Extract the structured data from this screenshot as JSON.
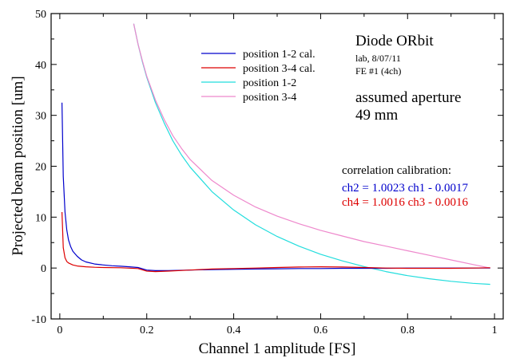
{
  "chart_data": {
    "type": "line",
    "xlabel": "Channel 1 amplitude  [FS]",
    "ylabel": "Projected beam position  [um]",
    "xlim": [
      -0.02,
      1.02
    ],
    "ylim": [
      -10,
      50
    ],
    "xticks": [
      0,
      0.2,
      0.4,
      0.6,
      0.8,
      1
    ],
    "xtick_labels": [
      "0",
      "0.2",
      "0.4",
      "0.6",
      "0.8",
      "1"
    ],
    "yticks": [
      -10,
      0,
      10,
      20,
      30,
      40,
      50
    ],
    "ytick_labels": [
      "-10",
      "0",
      "10",
      "20",
      "30",
      "40",
      "50"
    ],
    "grid": false,
    "legend_position": "top-center",
    "series": [
      {
        "name": "position 1-2 cal.",
        "color": "#0000cc",
        "x": [
          0.005,
          0.008,
          0.012,
          0.016,
          0.02,
          0.025,
          0.03,
          0.04,
          0.05,
          0.06,
          0.08,
          0.1,
          0.12,
          0.14,
          0.16,
          0.18,
          0.2,
          0.22,
          0.25,
          0.3,
          0.35,
          0.4,
          0.45,
          0.5,
          0.55,
          0.6,
          0.65,
          0.7,
          0.75,
          0.8,
          0.85,
          0.9,
          0.95,
          0.99
        ],
        "y": [
          32.5,
          18,
          11,
          7.5,
          5.5,
          4.2,
          3.3,
          2.3,
          1.6,
          1.2,
          0.8,
          0.6,
          0.45,
          0.35,
          0.25,
          0.1,
          -0.4,
          -0.5,
          -0.5,
          -0.4,
          -0.3,
          -0.25,
          -0.2,
          -0.15,
          -0.1,
          -0.1,
          -0.05,
          -0.05,
          -0.05,
          0,
          0,
          0,
          0,
          0
        ]
      },
      {
        "name": "position 3-4 cal.",
        "color": "#dd0000",
        "x": [
          0.005,
          0.008,
          0.012,
          0.016,
          0.02,
          0.03,
          0.04,
          0.06,
          0.08,
          0.1,
          0.14,
          0.18,
          0.2,
          0.22,
          0.25,
          0.3,
          0.35,
          0.4,
          0.45,
          0.5,
          0.55,
          0.6,
          0.65,
          0.7,
          0.75,
          0.8,
          0.85,
          0.9,
          0.95,
          0.99
        ],
        "y": [
          11,
          4,
          2,
          1.3,
          1,
          0.6,
          0.4,
          0.25,
          0.15,
          0.1,
          0.05,
          -0.1,
          -0.6,
          -0.7,
          -0.6,
          -0.4,
          -0.2,
          -0.1,
          0,
          0.1,
          0.2,
          0.25,
          0.2,
          0.1,
          0,
          -0.05,
          -0.05,
          -0.05,
          0,
          0.05
        ]
      },
      {
        "name": "position 1-2",
        "color": "#22dddd",
        "x": [
          0.17,
          0.18,
          0.19,
          0.2,
          0.22,
          0.24,
          0.26,
          0.28,
          0.3,
          0.35,
          0.4,
          0.45,
          0.5,
          0.55,
          0.6,
          0.65,
          0.7,
          0.75,
          0.8,
          0.85,
          0.9,
          0.95,
          0.99
        ],
        "y": [
          48,
          44,
          40.5,
          37.5,
          32.5,
          28.5,
          25,
          22.2,
          19.8,
          15,
          11.4,
          8.5,
          6.2,
          4.3,
          2.7,
          1.4,
          0.3,
          -0.7,
          -1.5,
          -2.1,
          -2.6,
          -3.0,
          -3.2
        ]
      },
      {
        "name": "position 3-4",
        "color": "#ee88cc",
        "x": [
          0.17,
          0.18,
          0.19,
          0.2,
          0.22,
          0.24,
          0.26,
          0.28,
          0.3,
          0.35,
          0.4,
          0.45,
          0.5,
          0.55,
          0.6,
          0.65,
          0.7,
          0.75,
          0.8,
          0.85,
          0.9,
          0.95,
          0.99
        ],
        "y": [
          48,
          44,
          40.7,
          37.7,
          33,
          29.2,
          26,
          23.5,
          21.3,
          17.2,
          14.3,
          12,
          10.2,
          8.7,
          7.4,
          6.3,
          5.2,
          4.3,
          3.4,
          2.5,
          1.6,
          0.7,
          0
        ]
      }
    ],
    "annotations": {
      "title": "Diode ORbit",
      "sub1": "lab, 8/07/11",
      "sub2": "FE #1 (4ch)",
      "aperture1": "assumed aperture",
      "aperture2": "49 mm",
      "corr_title": "correlation calibration:",
      "corr_eq1": "ch2 = 1.0023 ch1 - 0.0017",
      "corr_eq2": "ch4 = 1.0016 ch3 - 0.0016",
      "corr_eq1_color": "#0000cc",
      "corr_eq2_color": "#dd0000"
    }
  }
}
